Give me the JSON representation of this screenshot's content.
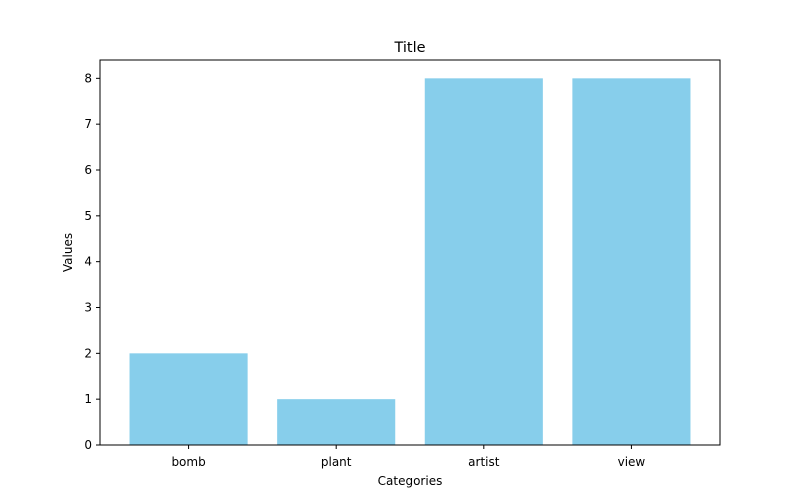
{
  "chart_data": {
    "type": "bar",
    "title": "Title",
    "xlabel": "Categories",
    "ylabel": "Values",
    "categories": [
      "bomb",
      "plant",
      "artist",
      "view"
    ],
    "values": [
      2,
      1,
      8,
      8
    ],
    "ylim": [
      0,
      8.4
    ],
    "yticks": [
      0,
      1,
      2,
      3,
      4,
      5,
      6,
      7,
      8
    ],
    "grid": false,
    "legend": "none",
    "bar_color": "#87CEEB"
  }
}
